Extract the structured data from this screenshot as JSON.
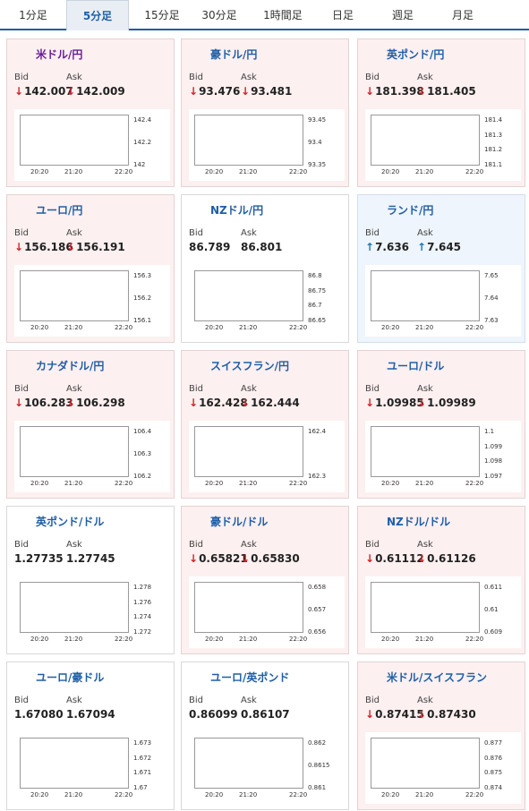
{
  "tabs": [
    {
      "label": "1分足",
      "active": false
    },
    {
      "label": "5分足",
      "active": true
    },
    {
      "label": "15分足",
      "active": false
    },
    {
      "label": "30分足",
      "active": false
    },
    {
      "label": "1時間足",
      "active": false
    },
    {
      "label": "日足",
      "active": false
    },
    {
      "label": "週足",
      "active": false
    },
    {
      "label": "月足",
      "active": false
    }
  ],
  "labels": {
    "bid": "Bid",
    "ask": "Ask"
  },
  "arrows": {
    "down": "↓",
    "up": "↑"
  },
  "colors": {
    "pair_link": "#1f5ea8",
    "pair_active": "#6a1b9a",
    "down": "#d3222a",
    "up": "#1f78b4",
    "candle_up": "#d3222a",
    "candle_down": "#1a3a8f",
    "ma_short": "#4a90e2",
    "ma_long": "#cc33cc"
  },
  "cards": [
    {
      "pair": "米ドル/円",
      "flag": "us-jp-flag-icon",
      "bid": "142.007",
      "ask": "142.009",
      "dir": "down",
      "bg": "pink",
      "yticks": [
        "142.4",
        "142.2",
        "142"
      ],
      "xticks": [
        "20:20",
        "21:20",
        "22:20"
      ],
      "active": true,
      "trend": "down"
    },
    {
      "pair": "豪ドル/円",
      "flag": "au-jp-flag-icon",
      "bid": "93.476",
      "ask": "93.481",
      "dir": "down",
      "bg": "pink",
      "yticks": [
        "93.45",
        "93.4",
        "93.35"
      ],
      "xticks": [
        "20:20",
        "21:20",
        "22:20"
      ],
      "active": false,
      "trend": "up"
    },
    {
      "pair": "英ポンド/円",
      "flag": "gb-jp-flag-icon",
      "bid": "181.398",
      "ask": "181.405",
      "dir": "down",
      "bg": "pink",
      "yticks": [
        "181.4",
        "181.3",
        "181.2",
        "181.1"
      ],
      "xticks": [
        "20:20",
        "21:20",
        "22:20"
      ],
      "active": false,
      "trend": "up"
    },
    {
      "pair": "ユーロ/円",
      "flag": "eu-jp-flag-icon",
      "bid": "156.186",
      "ask": "156.191",
      "dir": "down",
      "bg": "pink",
      "yticks": [
        "156.3",
        "156.2",
        "156.1"
      ],
      "xticks": [
        "20:20",
        "21:20",
        "22:20"
      ],
      "active": false,
      "trend": "down"
    },
    {
      "pair": "NZドル/円",
      "flag": "nz-jp-flag-icon",
      "bid": "86.789",
      "ask": "86.801",
      "dir": "none",
      "bg": "white",
      "yticks": [
        "86.8",
        "86.75",
        "86.7",
        "86.65"
      ],
      "xticks": [
        "20:20",
        "21:20",
        "22:20"
      ],
      "active": false,
      "trend": "up"
    },
    {
      "pair": "ランド/円",
      "flag": "za-jp-flag-icon",
      "bid": "7.636",
      "ask": "7.645",
      "dir": "up",
      "bg": "blue",
      "yticks": [
        "7.65",
        "7.64",
        "7.63"
      ],
      "xticks": [
        "20:20",
        "21:20",
        "22:20"
      ],
      "active": false,
      "trend": "flat"
    },
    {
      "pair": "カナダドル/円",
      "flag": "ca-jp-flag-icon",
      "bid": "106.283",
      "ask": "106.298",
      "dir": "down",
      "bg": "pink",
      "yticks": [
        "106.4",
        "106.3",
        "106.2"
      ],
      "xticks": [
        "20:20",
        "21:20",
        "22:20"
      ],
      "active": false,
      "trend": "flat"
    },
    {
      "pair": "スイスフラン/円",
      "flag": "ch-jp-flag-icon",
      "bid": "162.428",
      "ask": "162.444",
      "dir": "down",
      "bg": "pink",
      "yticks": [
        "162.4",
        "162.3"
      ],
      "xticks": [
        "20:20",
        "21:20",
        "22:20"
      ],
      "active": false,
      "trend": "flat"
    },
    {
      "pair": "ユーロ/ドル",
      "flag": "eu-us-flag-icon",
      "bid": "1.09985",
      "ask": "1.09989",
      "dir": "down",
      "bg": "pink",
      "yticks": [
        "1.1",
        "1.099",
        "1.098",
        "1.097"
      ],
      "xticks": [
        "20:20",
        "21:20",
        "22:20"
      ],
      "active": false,
      "trend": "up"
    },
    {
      "pair": "英ポンド/ドル",
      "flag": "gb-us-flag-icon",
      "bid": "1.27735",
      "ask": "1.27745",
      "dir": "none",
      "bg": "white",
      "yticks": [
        "1.278",
        "1.276",
        "1.274",
        "1.272"
      ],
      "xticks": [
        "20:20",
        "21:20",
        "22:20"
      ],
      "active": false,
      "trend": "up"
    },
    {
      "pair": "豪ドル/ドル",
      "flag": "au-us-flag-icon",
      "bid": "0.65821",
      "ask": "0.65830",
      "dir": "down",
      "bg": "pink",
      "yticks": [
        "0.658",
        "0.657",
        "0.656"
      ],
      "xticks": [
        "20:20",
        "21:20",
        "22:20"
      ],
      "active": false,
      "trend": "up"
    },
    {
      "pair": "NZドル/ドル",
      "flag": "nz-us-flag-icon",
      "bid": "0.61112",
      "ask": "0.61126",
      "dir": "down",
      "bg": "pink",
      "yticks": [
        "0.611",
        "0.61",
        "0.609"
      ],
      "xticks": [
        "20:20",
        "21:20",
        "22:20"
      ],
      "active": false,
      "trend": "up"
    },
    {
      "pair": "ユーロ/豪ドル",
      "flag": "eu-au-flag-icon",
      "bid": "1.67080",
      "ask": "1.67094",
      "dir": "none",
      "bg": "white",
      "yticks": [
        "1.673",
        "1.672",
        "1.671",
        "1.67"
      ],
      "xticks": [
        "20:20",
        "21:20",
        "22:20"
      ],
      "active": false,
      "trend": "down"
    },
    {
      "pair": "ユーロ/英ポンド",
      "flag": "eu-gb-flag-icon",
      "bid": "0.86099",
      "ask": "0.86107",
      "dir": "none",
      "bg": "white",
      "yticks": [
        "0.862",
        "0.8615",
        "0.861"
      ],
      "xticks": [
        "20:20",
        "21:20",
        "22:20"
      ],
      "active": false,
      "trend": "down"
    },
    {
      "pair": "米ドル/スイスフラン",
      "flag": "us-ch-flag-icon",
      "bid": "0.87415",
      "ask": "0.87430",
      "dir": "down",
      "bg": "pink",
      "yticks": [
        "0.877",
        "0.876",
        "0.875",
        "0.874"
      ],
      "xticks": [
        "20:20",
        "21:20",
        "22:20"
      ],
      "active": false,
      "trend": "down"
    }
  ]
}
